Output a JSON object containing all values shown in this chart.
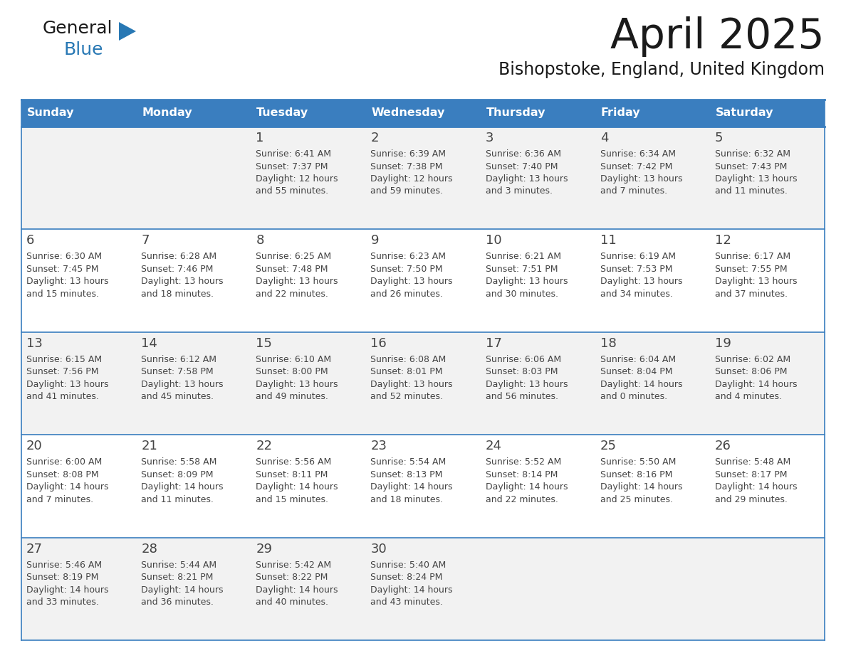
{
  "title": "April 2025",
  "subtitle": "Bishopstoke, England, United Kingdom",
  "header_bg_color": "#3a7ebf",
  "header_text_color": "#ffffff",
  "day_names": [
    "Sunday",
    "Monday",
    "Tuesday",
    "Wednesday",
    "Thursday",
    "Friday",
    "Saturday"
  ],
  "row_bg_even": "#f2f2f2",
  "row_bg_odd": "#ffffff",
  "border_color": "#3a7ebf",
  "cell_text_color": "#444444",
  "title_color": "#1a1a1a",
  "subtitle_color": "#1a1a1a",
  "logo_general_color": "#1a1a1a",
  "logo_blue_color": "#2878b4",
  "weeks": [
    [
      {
        "day": null,
        "text": ""
      },
      {
        "day": null,
        "text": ""
      },
      {
        "day": 1,
        "text": "Sunrise: 6:41 AM\nSunset: 7:37 PM\nDaylight: 12 hours\nand 55 minutes."
      },
      {
        "day": 2,
        "text": "Sunrise: 6:39 AM\nSunset: 7:38 PM\nDaylight: 12 hours\nand 59 minutes."
      },
      {
        "day": 3,
        "text": "Sunrise: 6:36 AM\nSunset: 7:40 PM\nDaylight: 13 hours\nand 3 minutes."
      },
      {
        "day": 4,
        "text": "Sunrise: 6:34 AM\nSunset: 7:42 PM\nDaylight: 13 hours\nand 7 minutes."
      },
      {
        "day": 5,
        "text": "Sunrise: 6:32 AM\nSunset: 7:43 PM\nDaylight: 13 hours\nand 11 minutes."
      }
    ],
    [
      {
        "day": 6,
        "text": "Sunrise: 6:30 AM\nSunset: 7:45 PM\nDaylight: 13 hours\nand 15 minutes."
      },
      {
        "day": 7,
        "text": "Sunrise: 6:28 AM\nSunset: 7:46 PM\nDaylight: 13 hours\nand 18 minutes."
      },
      {
        "day": 8,
        "text": "Sunrise: 6:25 AM\nSunset: 7:48 PM\nDaylight: 13 hours\nand 22 minutes."
      },
      {
        "day": 9,
        "text": "Sunrise: 6:23 AM\nSunset: 7:50 PM\nDaylight: 13 hours\nand 26 minutes."
      },
      {
        "day": 10,
        "text": "Sunrise: 6:21 AM\nSunset: 7:51 PM\nDaylight: 13 hours\nand 30 minutes."
      },
      {
        "day": 11,
        "text": "Sunrise: 6:19 AM\nSunset: 7:53 PM\nDaylight: 13 hours\nand 34 minutes."
      },
      {
        "day": 12,
        "text": "Sunrise: 6:17 AM\nSunset: 7:55 PM\nDaylight: 13 hours\nand 37 minutes."
      }
    ],
    [
      {
        "day": 13,
        "text": "Sunrise: 6:15 AM\nSunset: 7:56 PM\nDaylight: 13 hours\nand 41 minutes."
      },
      {
        "day": 14,
        "text": "Sunrise: 6:12 AM\nSunset: 7:58 PM\nDaylight: 13 hours\nand 45 minutes."
      },
      {
        "day": 15,
        "text": "Sunrise: 6:10 AM\nSunset: 8:00 PM\nDaylight: 13 hours\nand 49 minutes."
      },
      {
        "day": 16,
        "text": "Sunrise: 6:08 AM\nSunset: 8:01 PM\nDaylight: 13 hours\nand 52 minutes."
      },
      {
        "day": 17,
        "text": "Sunrise: 6:06 AM\nSunset: 8:03 PM\nDaylight: 13 hours\nand 56 minutes."
      },
      {
        "day": 18,
        "text": "Sunrise: 6:04 AM\nSunset: 8:04 PM\nDaylight: 14 hours\nand 0 minutes."
      },
      {
        "day": 19,
        "text": "Sunrise: 6:02 AM\nSunset: 8:06 PM\nDaylight: 14 hours\nand 4 minutes."
      }
    ],
    [
      {
        "day": 20,
        "text": "Sunrise: 6:00 AM\nSunset: 8:08 PM\nDaylight: 14 hours\nand 7 minutes."
      },
      {
        "day": 21,
        "text": "Sunrise: 5:58 AM\nSunset: 8:09 PM\nDaylight: 14 hours\nand 11 minutes."
      },
      {
        "day": 22,
        "text": "Sunrise: 5:56 AM\nSunset: 8:11 PM\nDaylight: 14 hours\nand 15 minutes."
      },
      {
        "day": 23,
        "text": "Sunrise: 5:54 AM\nSunset: 8:13 PM\nDaylight: 14 hours\nand 18 minutes."
      },
      {
        "day": 24,
        "text": "Sunrise: 5:52 AM\nSunset: 8:14 PM\nDaylight: 14 hours\nand 22 minutes."
      },
      {
        "day": 25,
        "text": "Sunrise: 5:50 AM\nSunset: 8:16 PM\nDaylight: 14 hours\nand 25 minutes."
      },
      {
        "day": 26,
        "text": "Sunrise: 5:48 AM\nSunset: 8:17 PM\nDaylight: 14 hours\nand 29 minutes."
      }
    ],
    [
      {
        "day": 27,
        "text": "Sunrise: 5:46 AM\nSunset: 8:19 PM\nDaylight: 14 hours\nand 33 minutes."
      },
      {
        "day": 28,
        "text": "Sunrise: 5:44 AM\nSunset: 8:21 PM\nDaylight: 14 hours\nand 36 minutes."
      },
      {
        "day": 29,
        "text": "Sunrise: 5:42 AM\nSunset: 8:22 PM\nDaylight: 14 hours\nand 40 minutes."
      },
      {
        "day": 30,
        "text": "Sunrise: 5:40 AM\nSunset: 8:24 PM\nDaylight: 14 hours\nand 43 minutes."
      },
      {
        "day": null,
        "text": ""
      },
      {
        "day": null,
        "text": ""
      },
      {
        "day": null,
        "text": ""
      }
    ]
  ]
}
